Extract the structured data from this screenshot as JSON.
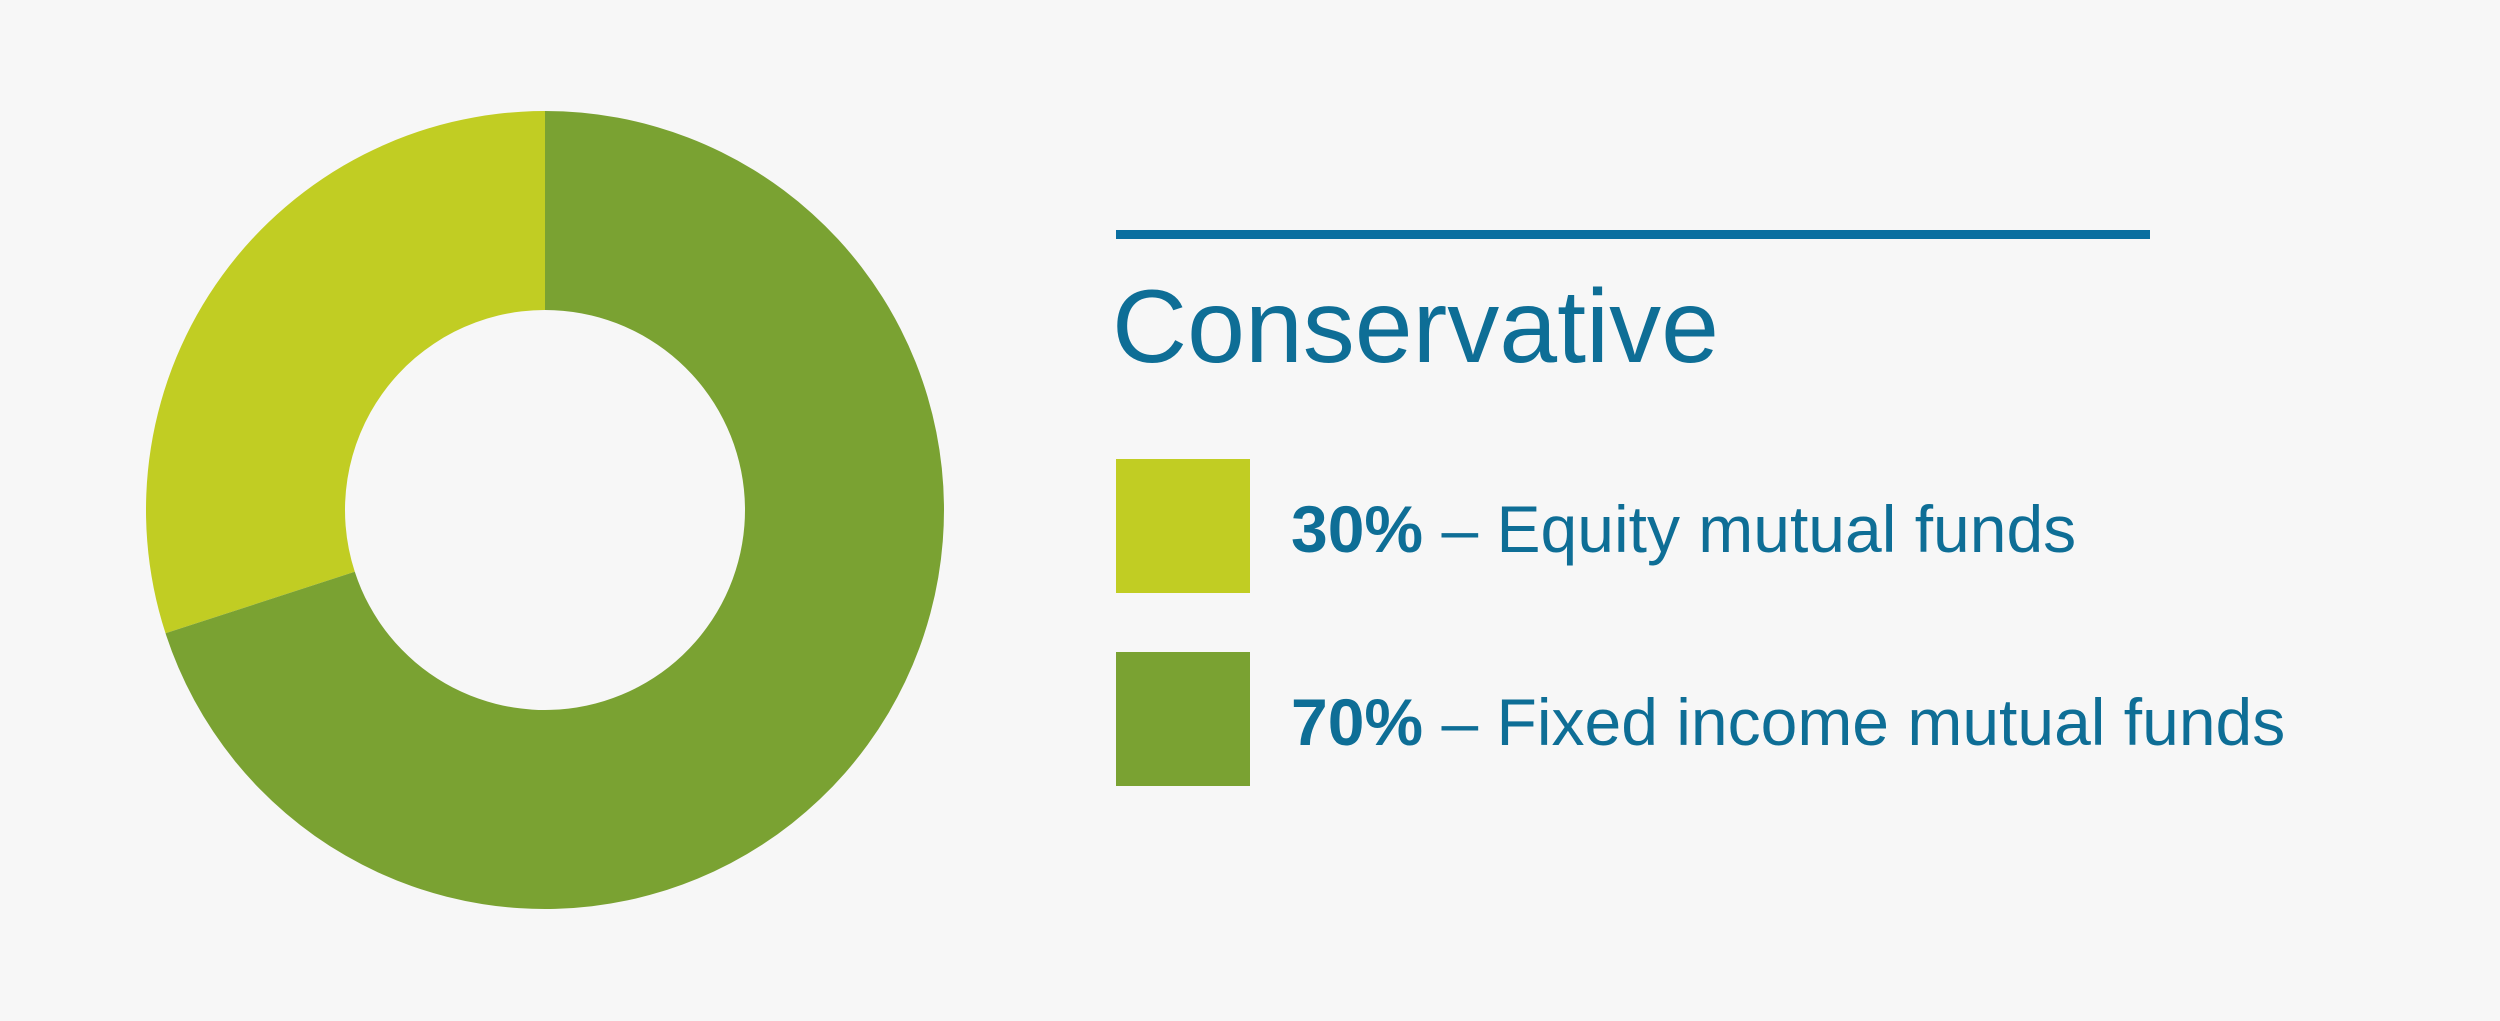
{
  "chart_data": {
    "type": "pie",
    "donut": true,
    "direction": "counterclockwise",
    "title": "Conservative",
    "categories": [
      "Equity mutual funds",
      "Fixed income mutual funds"
    ],
    "values": [
      30,
      70
    ],
    "value_labels": [
      "30%",
      "70%"
    ],
    "colors": [
      "#c1cd23",
      "#7aa232"
    ],
    "separator": "–"
  }
}
